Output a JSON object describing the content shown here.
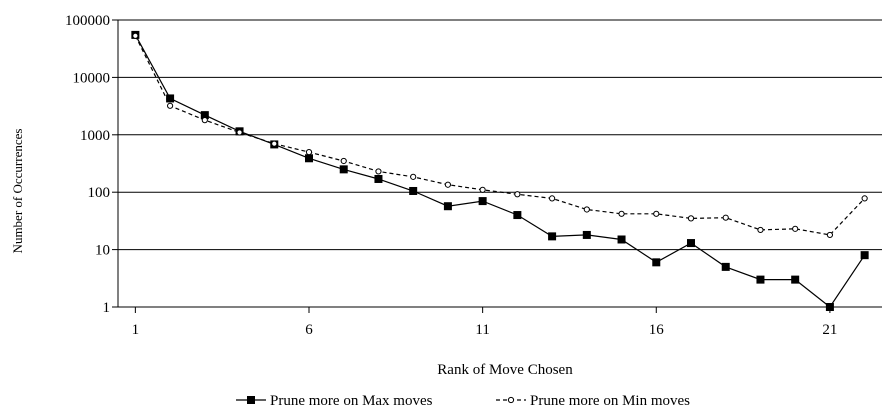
{
  "chart_data": {
    "type": "line",
    "title": "",
    "xlabel": "Rank of Move Chosen",
    "ylabel": "Number of Occurrences",
    "yscale": "log",
    "ylim": [
      1,
      100000
    ],
    "xlim": [
      0.5,
      22.5
    ],
    "grid": "horizontal",
    "legend_position": "bottom",
    "x_ticks": [
      1,
      6,
      11,
      16,
      21
    ],
    "x_tick_labels": [
      "1",
      "6",
      "11",
      "16",
      "21"
    ],
    "y_ticks": [
      1,
      10,
      100,
      1000,
      10000,
      100000
    ],
    "y_tick_labels": [
      "1",
      "10",
      "100",
      "1000",
      "10000",
      "100000"
    ],
    "x": [
      1,
      2,
      3,
      4,
      5,
      6,
      7,
      8,
      9,
      10,
      11,
      12,
      13,
      14,
      15,
      16,
      17,
      18,
      19,
      20,
      21,
      22
    ],
    "series": [
      {
        "name": "Prune more on Max moves",
        "style": "solid",
        "marker": "square",
        "color": "#000000",
        "values": [
          55000,
          4300,
          2200,
          1150,
          680,
          390,
          250,
          170,
          105,
          57,
          70,
          40,
          17,
          18,
          15,
          6,
          13,
          5,
          3,
          3,
          1,
          8
        ]
      },
      {
        "name": "Prune more on Min moves",
        "style": "dashed",
        "marker": "circle-open",
        "color": "#000000",
        "values": [
          53000,
          3200,
          1800,
          1100,
          700,
          500,
          350,
          230,
          185,
          135,
          110,
          92,
          78,
          50,
          42,
          42,
          35,
          36,
          22,
          23,
          18,
          78
        ]
      }
    ]
  }
}
